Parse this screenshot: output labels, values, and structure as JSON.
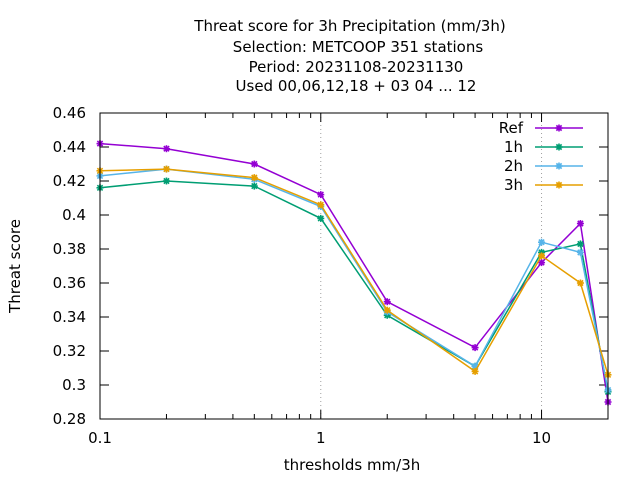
{
  "chart_data": {
    "type": "line",
    "title_lines": [
      "Threat score  for 3h Precipitation (mm/3h)",
      "Selection: METCOOP    351 stations",
      "Period: 20231108-20231130",
      "Used  00,06,12,18 + 03 04 ... 12"
    ],
    "xlabel": "thresholds mm/3h",
    "ylabel": "Threat score",
    "x_scale": "log",
    "xlim": [
      0.1,
      20
    ],
    "ylim": [
      0.28,
      0.46
    ],
    "x_ticks": [
      {
        "value": 0.1,
        "label": "0.1"
      },
      {
        "value": 1,
        "label": "1"
      },
      {
        "value": 10,
        "label": "10"
      }
    ],
    "y_ticks": [
      {
        "value": 0.28,
        "label": "0.28"
      },
      {
        "value": 0.3,
        "label": "0.3"
      },
      {
        "value": 0.32,
        "label": "0.32"
      },
      {
        "value": 0.34,
        "label": "0.34"
      },
      {
        "value": 0.36,
        "label": "0.36"
      },
      {
        "value": 0.38,
        "label": "0.38"
      },
      {
        "value": 0.4,
        "label": "0.4"
      },
      {
        "value": 0.42,
        "label": "0.42"
      },
      {
        "value": 0.44,
        "label": "0.44"
      },
      {
        "value": 0.46,
        "label": "0.46"
      }
    ],
    "x": [
      0.1,
      0.2,
      0.5,
      1,
      2,
      5,
      10,
      15,
      20
    ],
    "series": [
      {
        "name": "Ref",
        "color": "#9400d3",
        "values": [
          0.442,
          0.439,
          0.43,
          0.412,
          0.349,
          0.322,
          0.372,
          0.395,
          0.29
        ]
      },
      {
        "name": "1h",
        "color": "#009e73",
        "values": [
          0.416,
          0.42,
          0.417,
          0.398,
          0.341,
          0.311,
          0.378,
          0.383,
          0.296
        ]
      },
      {
        "name": "2h",
        "color": "#56b4e9",
        "values": [
          0.423,
          0.427,
          0.421,
          0.405,
          0.343,
          0.311,
          0.384,
          0.378,
          0.297
        ]
      },
      {
        "name": "3h",
        "color": "#e69f00",
        "values": [
          0.426,
          0.427,
          0.422,
          0.406,
          0.344,
          0.308,
          0.376,
          0.36,
          0.306
        ]
      }
    ],
    "grid": "dotted-vertical-at-decades",
    "legend_position": "top-right"
  }
}
